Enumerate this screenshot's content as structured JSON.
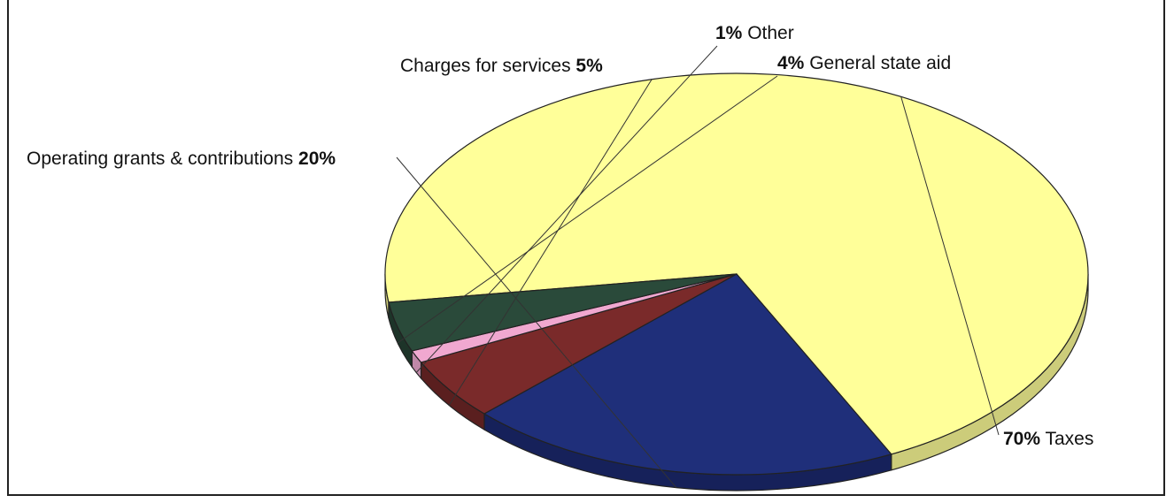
{
  "chart_data": {
    "type": "pie",
    "title": "",
    "slices": [
      {
        "label": "Taxes",
        "pct_text": "70%",
        "value": 70,
        "color": "#ffff99",
        "side_color": "#cccc7a"
      },
      {
        "label": "Operating grants & contributions",
        "pct_text": "20%",
        "value": 20,
        "color": "#1f2f7a",
        "side_color": "#16215a"
      },
      {
        "label": "Charges for services",
        "pct_text": "5%",
        "value": 5,
        "color": "#7a2a2a",
        "side_color": "#5a1f1f"
      },
      {
        "label": "Other",
        "pct_text": "1%",
        "value": 1,
        "color": "#f0a8d0",
        "side_color": "#c088a8"
      },
      {
        "label": "General state aid",
        "pct_text": "4%",
        "value": 4,
        "color": "#2a4a3a",
        "side_color": "#1d3429"
      }
    ],
    "three_d": true
  }
}
